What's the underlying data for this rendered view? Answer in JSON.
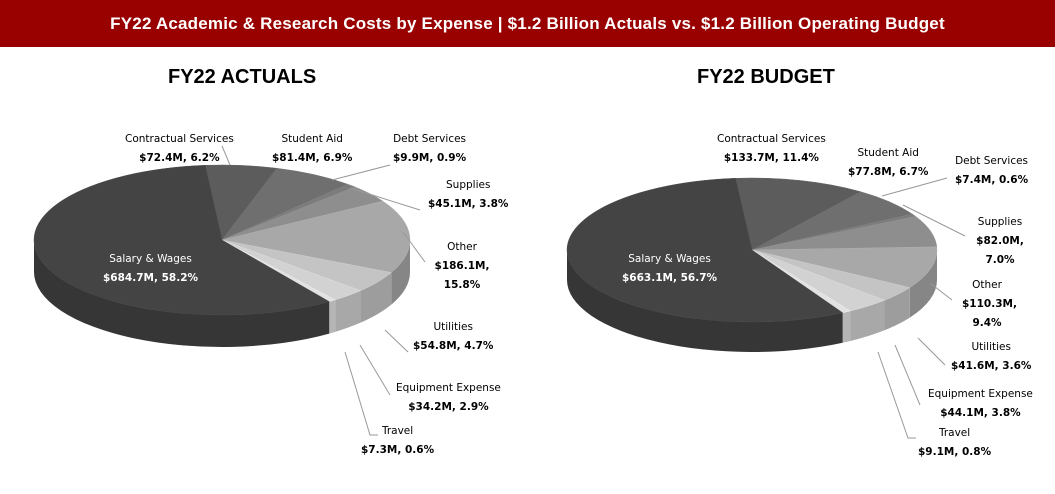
{
  "header": {
    "title": "FY22 Academic & Research Costs by Expense | $1.2 Billion  Actuals vs. $1.2 Billion  Operating Budget"
  },
  "chart_data": [
    {
      "type": "pie",
      "title": "FY22 ACTUALS",
      "slices": [
        {
          "label": "Contractual Services",
          "value": 72.4,
          "percent": 6.2,
          "value_label": "$72.4M, 6.2%",
          "color": "#5c5c5c"
        },
        {
          "label": "Student Aid",
          "value": 81.4,
          "percent": 6.9,
          "value_label": "$81.4M, 6.9%",
          "color": "#6f6f6f"
        },
        {
          "label": "Debt Services",
          "value": 9.9,
          "percent": 0.9,
          "value_label": "$9.9M, 0.9%",
          "color": "#7c7c7c"
        },
        {
          "label": "Supplies",
          "value": 45.1,
          "percent": 3.8,
          "value_label": "$45.1M, 3.8%",
          "color": "#8e8e8e"
        },
        {
          "label": "Other",
          "value": 186.1,
          "percent": 15.8,
          "value_label": "$186.1M, 15.8%",
          "color": "#a8a8a8"
        },
        {
          "label": "Utilities",
          "value": 54.8,
          "percent": 4.7,
          "value_label": "$54.8M, 4.7%",
          "color": "#c4c4c4"
        },
        {
          "label": "Equipment Expense",
          "value": 34.2,
          "percent": 2.9,
          "value_label": "$34.2M, 2.9%",
          "color": "#d2d2d2"
        },
        {
          "label": "Travel",
          "value": 7.3,
          "percent": 0.6,
          "value_label": "$7.3M, 0.6%",
          "color": "#e2e2e2"
        },
        {
          "label": "Salary & Wages",
          "value": 684.7,
          "percent": 58.2,
          "value_label": "$684.7M, 58.2%",
          "color": "#444444"
        }
      ]
    },
    {
      "type": "pie",
      "title": "FY22 BUDGET",
      "slices": [
        {
          "label": "Contractual Services",
          "value": 133.7,
          "percent": 11.4,
          "value_label": "$133.7M, 11.4%",
          "color": "#5c5c5c"
        },
        {
          "label": "Student Aid",
          "value": 77.8,
          "percent": 6.7,
          "value_label": "$77.8M, 6.7%",
          "color": "#6f6f6f"
        },
        {
          "label": "Debt Services",
          "value": 7.4,
          "percent": 0.6,
          "value_label": "$7.4M, 0.6%",
          "color": "#7c7c7c"
        },
        {
          "label": "Supplies",
          "value": 82.0,
          "percent": 7.0,
          "value_label": "$82.0M, 7.0%",
          "color": "#8e8e8e"
        },
        {
          "label": "Other",
          "value": 110.3,
          "percent": 9.4,
          "value_label": "$110.3M, 9.4%",
          "color": "#a8a8a8"
        },
        {
          "label": "Utilities",
          "value": 41.6,
          "percent": 3.6,
          "value_label": "$41.6M, 3.6%",
          "color": "#c4c4c4"
        },
        {
          "label": "Equipment Expense",
          "value": 44.1,
          "percent": 3.8,
          "value_label": "$44.1M, 3.8%",
          "color": "#d2d2d2"
        },
        {
          "label": "Travel",
          "value": 9.1,
          "percent": 0.8,
          "value_label": "$9.1M, 0.8%",
          "color": "#e2e2e2"
        },
        {
          "label": "Salary & Wages",
          "value": 663.1,
          "percent": 56.7,
          "value_label": "$663.1M, 56.7%",
          "color": "#444444"
        }
      ]
    }
  ]
}
